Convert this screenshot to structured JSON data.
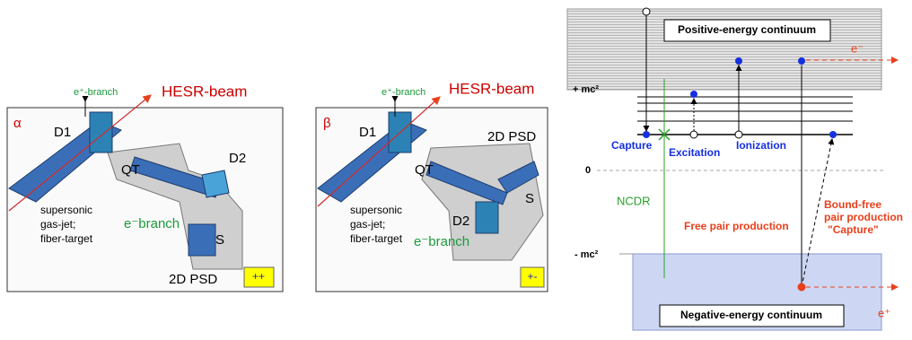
{
  "panel_alpha": {
    "label": "α",
    "d1": "D1",
    "positron_branch": "e⁺-branch",
    "beam": "HESR-beam",
    "d2": "D2",
    "qt": "QT",
    "target": [
      "supersonic",
      "gas-jet;",
      "fiber-target"
    ],
    "electron_branch": "e⁻branch",
    "s": "S",
    "psd": "2D PSD",
    "polarity": "++"
  },
  "panel_beta": {
    "label": "β",
    "d1": "D1",
    "positron_branch": "e⁺-branch",
    "beam": "HESR-beam",
    "psd": "2D PSD",
    "qt": "QT",
    "s": "S",
    "d2": "D2",
    "target": [
      "supersonic",
      "gas-jet;",
      "fiber-target"
    ],
    "electron_branch": "e⁻branch",
    "polarity": "+-"
  },
  "energy_diagram": {
    "positive_continuum": "Positive-energy continuum",
    "electron": "e⁻",
    "plus_mc2": "+ mc²",
    "capture": "Capture",
    "excitation": "Excitation",
    "ionization": "Ionization",
    "zero": "0",
    "ncdr": "NCDR",
    "bound_free": [
      "Bound-free",
      "pair production",
      "\"Capture\""
    ],
    "free_pair": "Free pair production",
    "minus_mc2": "- mc²",
    "negative_continuum": "Negative-energy continuum",
    "positron": "e⁺"
  }
}
